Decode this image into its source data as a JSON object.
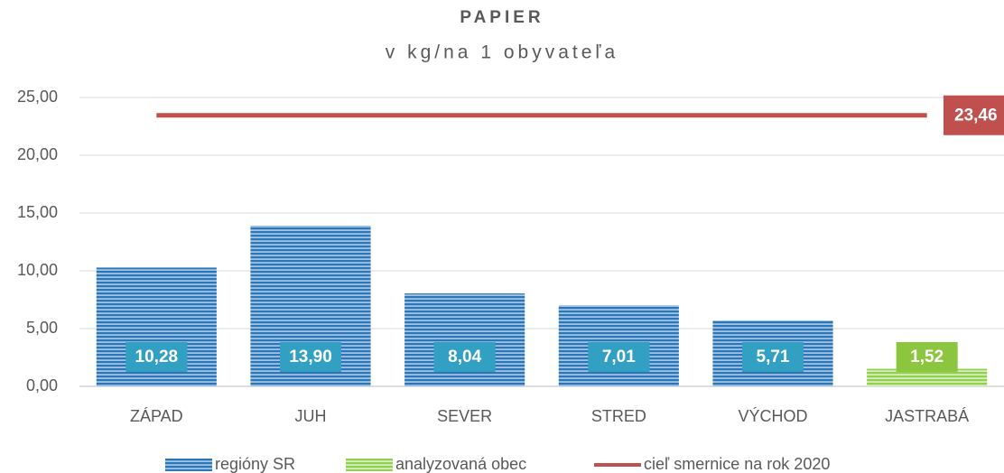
{
  "chart_data": {
    "type": "bar",
    "title": "PAPIER",
    "subtitle": "v kg/na 1 obyvateľa",
    "categories": [
      "ZÁPAD",
      "JUH",
      "SEVER",
      "STRED",
      "VÝCHOD",
      "JASTRABÁ"
    ],
    "series": [
      {
        "name": "regióny SR",
        "color": "#2e75b6",
        "label_color": "#31a0c2",
        "values": [
          10.28,
          13.9,
          8.04,
          7.01,
          5.71,
          null
        ],
        "value_labels": [
          "10,28",
          "13,90",
          "8,04",
          "7,01",
          "5,71",
          null
        ]
      },
      {
        "name": "analyzovaná obec",
        "color": "#92d050",
        "label_color": "#8cc63e",
        "values": [
          null,
          null,
          null,
          null,
          null,
          1.52
        ],
        "value_labels": [
          null,
          null,
          null,
          null,
          null,
          "1,52"
        ]
      },
      {
        "name": "cieľ smernice na rok 2020",
        "type": "line",
        "color": "#c0504d",
        "values": [
          23.46,
          23.46,
          23.46,
          23.46,
          23.46,
          23.46
        ],
        "value_labels": [
          null,
          null,
          null,
          null,
          null,
          "23,46"
        ]
      }
    ],
    "ylim": [
      0,
      25
    ],
    "yticks": [
      {
        "value": 0,
        "label": "0,00"
      },
      {
        "value": 5,
        "label": "5,00"
      },
      {
        "value": 10,
        "label": "10,00"
      },
      {
        "value": 15,
        "label": "15,00"
      },
      {
        "value": 20,
        "label": "20,00"
      },
      {
        "value": 25,
        "label": "25,00"
      }
    ],
    "grid": true,
    "legend": "bottom"
  }
}
